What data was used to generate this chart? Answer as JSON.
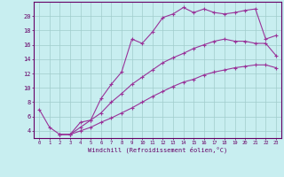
{
  "xlabel": "Windchill (Refroidissement éolien,°C)",
  "bg_color": "#c8eef0",
  "grid_color": "#a0cccc",
  "line_color": "#993399",
  "spine_color": "#660066",
  "xlim": [
    -0.5,
    23.5
  ],
  "ylim": [
    3.0,
    22.0
  ],
  "xticks": [
    0,
    1,
    2,
    3,
    4,
    5,
    6,
    7,
    8,
    9,
    10,
    11,
    12,
    13,
    14,
    15,
    16,
    17,
    18,
    19,
    20,
    21,
    22,
    23
  ],
  "yticks": [
    4,
    6,
    8,
    10,
    12,
    14,
    16,
    18,
    20
  ],
  "line1_x": [
    0,
    1,
    2,
    3,
    4,
    5,
    6,
    7,
    8,
    9,
    10,
    11,
    12,
    13,
    14,
    15,
    16,
    17,
    18,
    19,
    20,
    21,
    22,
    23
  ],
  "line1_y": [
    7.0,
    4.5,
    3.5,
    3.5,
    5.2,
    5.5,
    8.5,
    10.5,
    12.2,
    16.8,
    16.2,
    17.8,
    19.8,
    20.3,
    21.2,
    20.5,
    21.0,
    20.5,
    20.3,
    20.5,
    20.8,
    21.0,
    16.8,
    17.3
  ],
  "line2_x": [
    2,
    3,
    4,
    5,
    6,
    7,
    8,
    9,
    10,
    11,
    12,
    13,
    14,
    15,
    16,
    17,
    18,
    19,
    20,
    21,
    22,
    23
  ],
  "line2_y": [
    3.5,
    3.5,
    4.5,
    5.5,
    6.5,
    8.0,
    9.2,
    10.5,
    11.5,
    12.5,
    13.5,
    14.2,
    14.8,
    15.5,
    16.0,
    16.5,
    16.8,
    16.5,
    16.5,
    16.2,
    16.2,
    14.5
  ],
  "line3_x": [
    2,
    3,
    4,
    5,
    6,
    7,
    8,
    9,
    10,
    11,
    12,
    13,
    14,
    15,
    16,
    17,
    18,
    19,
    20,
    21,
    22,
    23
  ],
  "line3_y": [
    3.5,
    3.5,
    4.0,
    4.5,
    5.2,
    5.8,
    6.5,
    7.2,
    8.0,
    8.8,
    9.5,
    10.2,
    10.8,
    11.2,
    11.8,
    12.2,
    12.5,
    12.8,
    13.0,
    13.2,
    13.2,
    12.8
  ]
}
